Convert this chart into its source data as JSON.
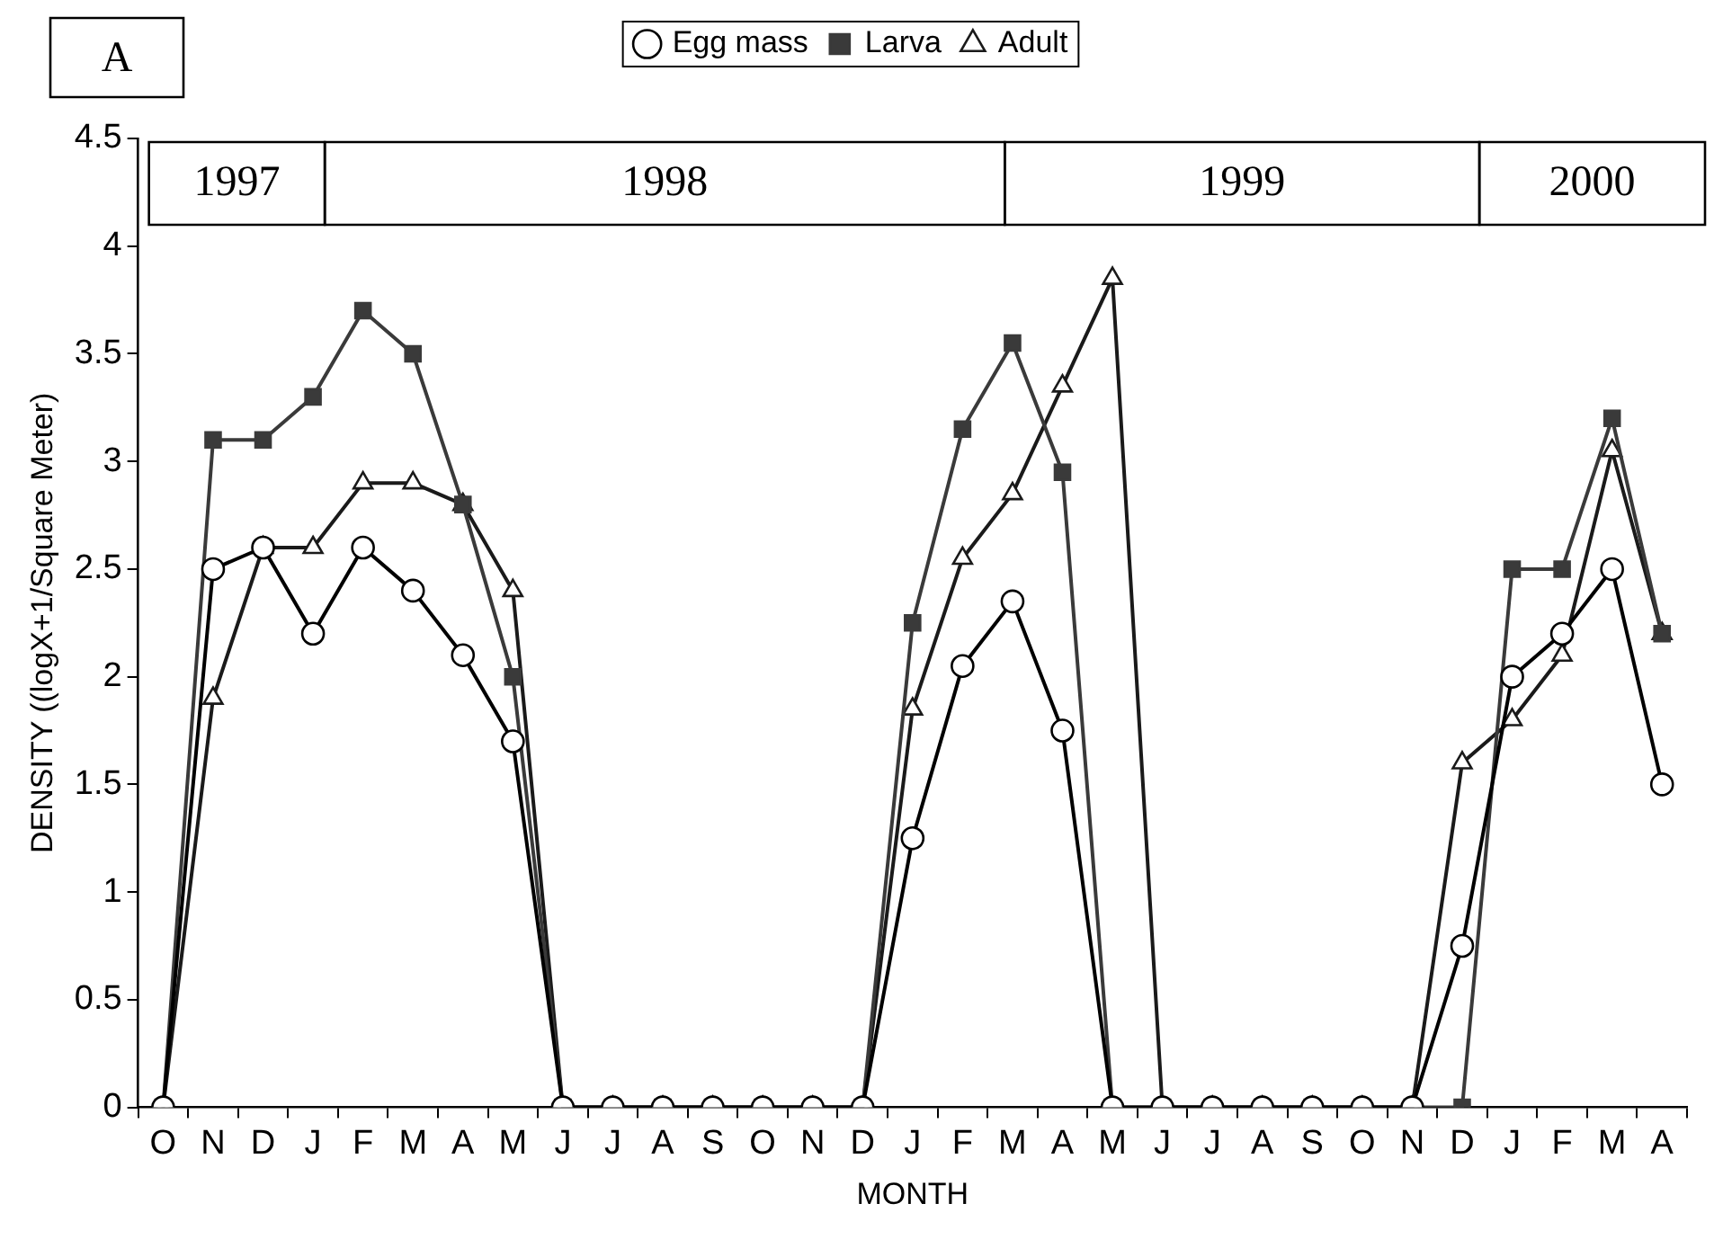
{
  "chart_data": {
    "type": "line",
    "xlabel": "MONTH",
    "ylabel": "DENSITY ((logX+1/Square Meter)",
    "categories": [
      "O",
      "N",
      "D",
      "J",
      "F",
      "M",
      "A",
      "M",
      "J",
      "J",
      "A",
      "S",
      "O",
      "N",
      "D",
      "J",
      "F",
      "M",
      "A",
      "M",
      "J",
      "J",
      "A",
      "S",
      "O",
      "N",
      "D",
      "J",
      "F",
      "M",
      "A"
    ],
    "series": [
      {
        "name": "Egg mass",
        "color": "#000000",
        "marker": "circle",
        "values": [
          0,
          2.5,
          2.6,
          2.2,
          2.6,
          2.4,
          2.1,
          1.7,
          0,
          0,
          0,
          0,
          0,
          0,
          0,
          1.25,
          2.05,
          2.35,
          1.75,
          0,
          0,
          0,
          0,
          0,
          0,
          0,
          0.75,
          2.0,
          2.2,
          2.5,
          1.5
        ]
      },
      {
        "name": "Larva",
        "color": "#3a3a3a",
        "marker": "square",
        "values": [
          0,
          3.1,
          3.1,
          3.3,
          3.7,
          3.5,
          2.8,
          2.0,
          0,
          0,
          0,
          0,
          0,
          0,
          0,
          2.25,
          3.15,
          3.55,
          2.95,
          0,
          0,
          0,
          0,
          0,
          0,
          0,
          0,
          2.5,
          2.5,
          3.2,
          2.2
        ]
      },
      {
        "name": "Adult",
        "color": "#1a1a1a",
        "marker": "triangle",
        "values": [
          0,
          1.9,
          2.6,
          2.6,
          2.9,
          2.9,
          2.8,
          2.4,
          0,
          0,
          0,
          0,
          0,
          0,
          0,
          1.85,
          2.55,
          2.85,
          3.35,
          3.85,
          0,
          0,
          0,
          0,
          0,
          0,
          1.6,
          1.8,
          2.1,
          3.05,
          2.2
        ]
      }
    ],
    "ylim": [
      0,
      4.5
    ],
    "yticks": [
      0,
      0.5,
      1,
      1.5,
      2,
      2.5,
      3,
      3.5,
      4,
      4.5
    ],
    "grid": false,
    "legend": "top",
    "line_style": "solid",
    "annotations": [
      "A",
      "1997",
      "1998",
      "1999",
      "2000"
    ]
  }
}
